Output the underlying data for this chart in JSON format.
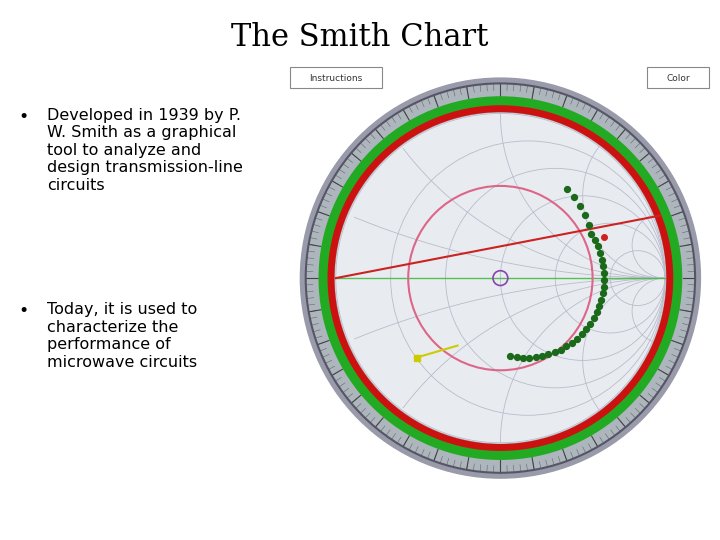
{
  "title": "The Smith Chart",
  "title_fontsize": 22,
  "title_color": "#000000",
  "background_color": "#ffffff",
  "bullet_points": [
    "Developed in 1939 by P.\nW. Smith as a graphical\ntool to analyze and\ndesign transmission-line\ncircuits",
    "Today, it is used to\ncharacterize the\nperformance of\nmicrowave circuits"
  ],
  "bullet_fontsize": 11.5,
  "bullet_color": "#000000",
  "smith_bg": "#b8c2cc",
  "green_ring_color": "#22aa22",
  "red_ring_color": "#cc1111",
  "pink_circle_color": "#dd6688",
  "pink_circle_lw": 1.5,
  "red_line_color": "#cc2222",
  "red_line_lw": 1.5,
  "green_line_color": "#44bb44",
  "green_line_lw": 1.0,
  "yellow_line_color": "#cccc00",
  "yellow_line_lw": 1.5,
  "dots_color": "#1a6a1a",
  "dot_size": 18,
  "center_circle_color": "#8844aa",
  "instructions_label": "Instructions",
  "color_label": "Color",
  "label_fontsize": 6.5
}
